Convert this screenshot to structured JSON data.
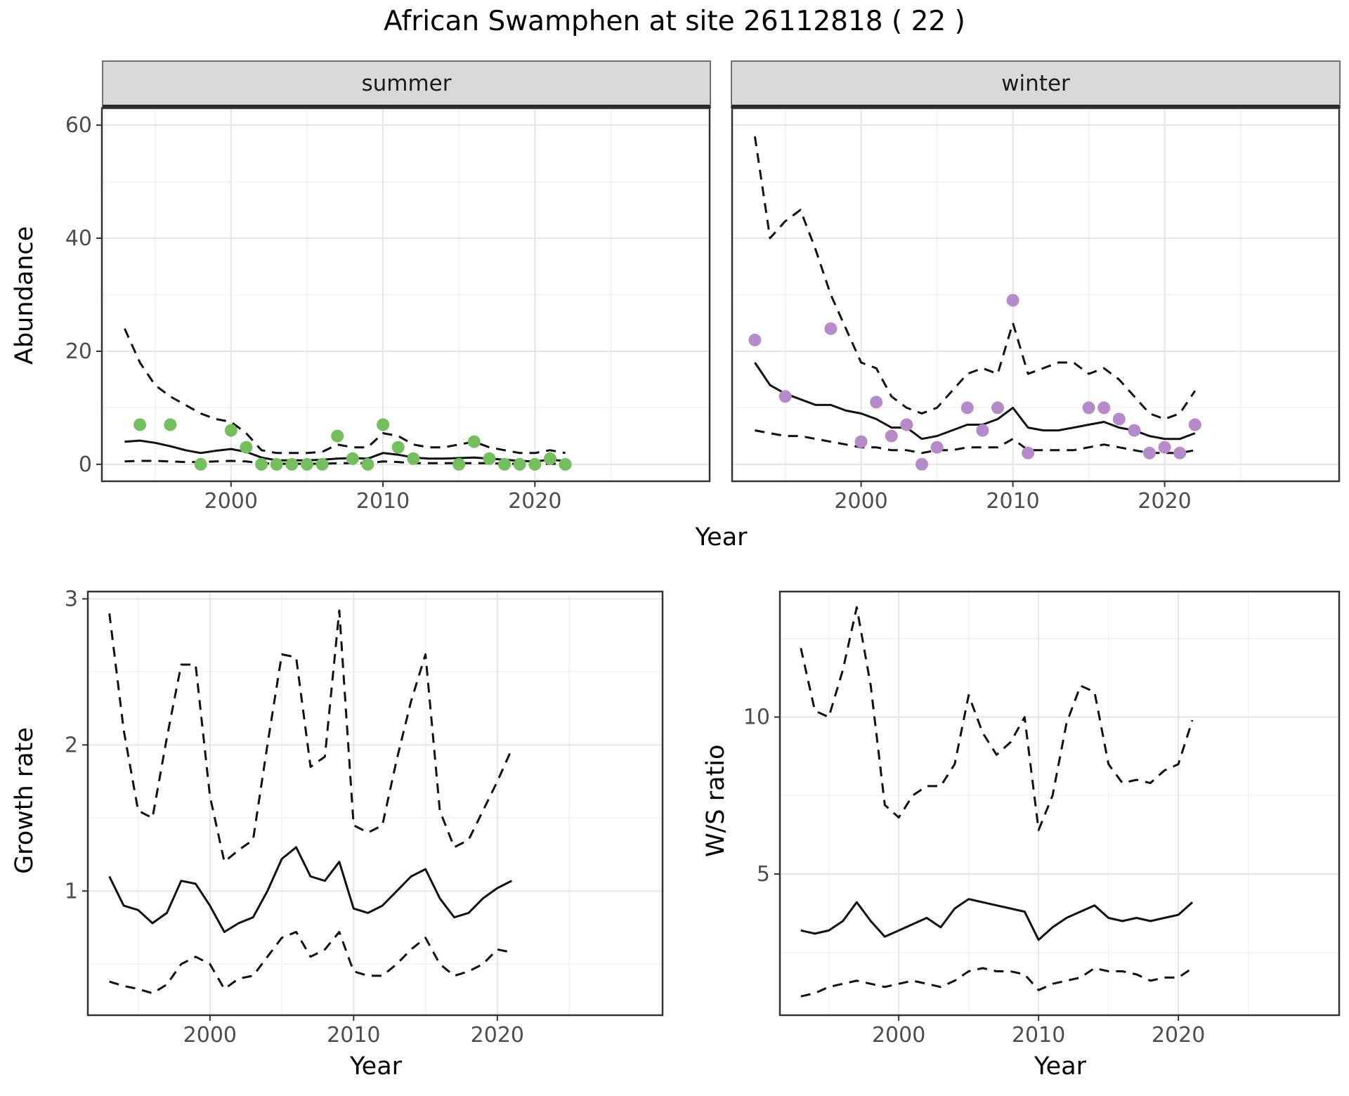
{
  "title": "African Swamphen at site 26112818 ( 22 )",
  "colors": {
    "summer": "#73bf5e",
    "winter": "#b68bc9",
    "line": "#111111"
  },
  "chart_data": [
    {
      "type": "line",
      "facet": "summer",
      "xlabel": "Year",
      "ylabel": "Abundance",
      "xlim": [
        1991.5,
        2031.5
      ],
      "ylim": [
        -3,
        63
      ],
      "xticks": [
        2000,
        2010,
        2020
      ],
      "yticks": [
        0,
        20,
        40,
        60
      ],
      "x": [
        1993,
        1994,
        1995,
        1996,
        1997,
        1998,
        1999,
        2000,
        2001,
        2002,
        2003,
        2004,
        2005,
        2006,
        2007,
        2008,
        2009,
        2010,
        2011,
        2012,
        2013,
        2014,
        2015,
        2016,
        2017,
        2018,
        2019,
        2020,
        2021,
        2022
      ],
      "series": [
        {
          "name": "fit",
          "style": "solid",
          "values": [
            4.0,
            4.2,
            3.8,
            3.2,
            2.5,
            2.0,
            2.4,
            2.7,
            2.2,
            1.2,
            0.7,
            0.7,
            0.7,
            0.8,
            1.0,
            1.1,
            1.0,
            2.0,
            1.7,
            1.2,
            1.0,
            1.0,
            1.1,
            1.2,
            1.0,
            0.8,
            0.6,
            0.5,
            0.8,
            0.6
          ]
        },
        {
          "name": "upper_ci",
          "style": "dashed",
          "values": [
            24,
            18,
            14,
            12,
            10.5,
            9,
            8,
            7.5,
            5.5,
            2.5,
            2,
            2,
            2,
            2.2,
            3.5,
            3,
            3,
            5.5,
            5,
            3.5,
            3,
            3,
            3.5,
            4,
            3,
            2.5,
            2,
            2,
            2.5,
            2
          ]
        },
        {
          "name": "lower_ci",
          "style": "dashed",
          "values": [
            0.5,
            0.6,
            0.6,
            0.5,
            0.4,
            0.4,
            0.5,
            0.6,
            0.5,
            0.2,
            0.1,
            0.1,
            0.1,
            0.1,
            0.2,
            0.2,
            0.2,
            0.5,
            0.4,
            0.2,
            0.2,
            0.2,
            0.2,
            0.2,
            0.2,
            0.1,
            0.1,
            0.1,
            0.1,
            0.1
          ]
        }
      ],
      "points": {
        "name": "observed-counts",
        "color_key": "summer",
        "x": [
          1994,
          1996,
          1998,
          2000,
          2001,
          2002,
          2003,
          2004,
          2005,
          2006,
          2007,
          2008,
          2009,
          2010,
          2011,
          2012,
          2015,
          2016,
          2017,
          2018,
          2019,
          2020,
          2021,
          2022
        ],
        "y": [
          7,
          7,
          0,
          6,
          3,
          0,
          0,
          0,
          0,
          0,
          5,
          1,
          0,
          7,
          3,
          1,
          0,
          4,
          1,
          0,
          0,
          0,
          1,
          0
        ]
      }
    },
    {
      "type": "line",
      "facet": "winter",
      "xlabel": "Year",
      "ylabel": "Abundance",
      "xlim": [
        1991.5,
        2031.5
      ],
      "ylim": [
        -3,
        63
      ],
      "xticks": [
        2000,
        2010,
        2020
      ],
      "yticks": [
        0,
        20,
        40,
        60
      ],
      "x": [
        1993,
        1994,
        1995,
        1996,
        1997,
        1998,
        1999,
        2000,
        2001,
        2002,
        2003,
        2004,
        2005,
        2006,
        2007,
        2008,
        2009,
        2010,
        2011,
        2012,
        2013,
        2014,
        2015,
        2016,
        2017,
        2018,
        2019,
        2020,
        2021,
        2022
      ],
      "series": [
        {
          "name": "fit",
          "style": "solid",
          "values": [
            18,
            14,
            12.5,
            11.5,
            10.5,
            10.5,
            9.5,
            9,
            8,
            6.5,
            6.5,
            4.5,
            5,
            6,
            7,
            7,
            8,
            10,
            6.5,
            6,
            6,
            6.5,
            7,
            7.5,
            6.5,
            6,
            5,
            4.5,
            4.5,
            5.5
          ]
        },
        {
          "name": "upper_ci",
          "style": "dashed",
          "values": [
            58,
            40,
            43,
            45,
            38,
            30,
            24,
            18,
            17,
            12,
            10,
            9,
            10,
            13,
            16,
            17,
            16,
            25,
            16,
            17,
            18,
            18,
            16,
            17,
            15,
            12,
            9,
            8,
            9,
            13
          ]
        },
        {
          "name": "lower_ci",
          "style": "dashed",
          "values": [
            6,
            5.5,
            5,
            5,
            4.5,
            4,
            3.5,
            3,
            3,
            2.5,
            2.5,
            2,
            2.5,
            2.5,
            3,
            3,
            3,
            4.5,
            2.5,
            2.5,
            2.5,
            2.5,
            3,
            3.5,
            3,
            2.5,
            2,
            2,
            2,
            2.5
          ]
        }
      ],
      "points": {
        "name": "observed-counts",
        "color_key": "winter",
        "x": [
          1993,
          1995,
          1998,
          2000,
          2001,
          2002,
          2003,
          2004,
          2005,
          2007,
          2008,
          2009,
          2010,
          2011,
          2015,
          2016,
          2017,
          2018,
          2019,
          2020,
          2021,
          2022
        ],
        "y": [
          22,
          12,
          24,
          4,
          11,
          5,
          7,
          0,
          3,
          10,
          6,
          10,
          29,
          2,
          10,
          10,
          8,
          6,
          2,
          3,
          2,
          7
        ]
      }
    },
    {
      "type": "line",
      "xlabel": "Year",
      "ylabel": "Growth rate",
      "xlim": [
        1991.5,
        2031.5
      ],
      "ylim": [
        0.15,
        3.05
      ],
      "xticks": [
        2000,
        2010,
        2020
      ],
      "yticks": [
        1,
        2,
        3
      ],
      "x": [
        1993,
        1994,
        1995,
        1996,
        1997,
        1998,
        1999,
        2000,
        2001,
        2002,
        2003,
        2004,
        2005,
        2006,
        2007,
        2008,
        2009,
        2010,
        2011,
        2012,
        2013,
        2014,
        2015,
        2016,
        2017,
        2018,
        2019,
        2020,
        2021
      ],
      "series": [
        {
          "name": "fit",
          "style": "solid",
          "values": [
            1.1,
            0.9,
            0.87,
            0.78,
            0.85,
            1.07,
            1.05,
            0.9,
            0.72,
            0.78,
            0.82,
            1.0,
            1.22,
            1.3,
            1.1,
            1.07,
            1.2,
            0.88,
            0.85,
            0.9,
            1.0,
            1.1,
            1.15,
            0.95,
            0.82,
            0.85,
            0.95,
            1.02,
            1.07
          ]
        },
        {
          "name": "upper_ci",
          "style": "dashed",
          "values": [
            2.9,
            2.1,
            1.55,
            1.5,
            2.05,
            2.55,
            2.55,
            1.65,
            1.2,
            1.28,
            1.35,
            2.0,
            2.62,
            2.6,
            1.85,
            1.92,
            2.92,
            1.45,
            1.4,
            1.45,
            1.9,
            2.3,
            2.62,
            1.55,
            1.3,
            1.35,
            1.55,
            1.75,
            1.97
          ]
        },
        {
          "name": "lower_ci",
          "style": "dashed",
          "values": [
            0.38,
            0.35,
            0.33,
            0.3,
            0.36,
            0.5,
            0.55,
            0.5,
            0.33,
            0.4,
            0.42,
            0.55,
            0.68,
            0.72,
            0.55,
            0.6,
            0.72,
            0.45,
            0.42,
            0.42,
            0.5,
            0.6,
            0.68,
            0.5,
            0.42,
            0.45,
            0.5,
            0.6,
            0.58
          ]
        }
      ]
    },
    {
      "type": "line",
      "xlabel": "Year",
      "ylabel": "W/S ratio",
      "xlim": [
        1991.5,
        2031.5
      ],
      "ylim": [
        0.5,
        14
      ],
      "xticks": [
        2000,
        2010,
        2020
      ],
      "yticks": [
        5,
        10
      ],
      "x": [
        1993,
        1994,
        1995,
        1996,
        1997,
        1998,
        1999,
        2000,
        2001,
        2002,
        2003,
        2004,
        2005,
        2006,
        2007,
        2008,
        2009,
        2010,
        2011,
        2012,
        2013,
        2014,
        2015,
        2016,
        2017,
        2018,
        2019,
        2020,
        2021
      ],
      "series": [
        {
          "name": "fit",
          "style": "solid",
          "values": [
            3.2,
            3.1,
            3.2,
            3.5,
            4.1,
            3.5,
            3.0,
            3.2,
            3.4,
            3.6,
            3.3,
            3.9,
            4.2,
            4.1,
            4.0,
            3.9,
            3.8,
            2.9,
            3.3,
            3.6,
            3.8,
            4.0,
            3.6,
            3.5,
            3.6,
            3.5,
            3.6,
            3.7,
            4.1
          ]
        },
        {
          "name": "upper_ci",
          "style": "dashed",
          "values": [
            12.2,
            10.2,
            10.0,
            11.5,
            13.5,
            11.0,
            7.2,
            6.8,
            7.5,
            7.8,
            7.8,
            8.5,
            10.7,
            9.5,
            8.8,
            9.2,
            10.0,
            6.4,
            7.5,
            9.8,
            11.0,
            10.8,
            8.5,
            7.9,
            8.0,
            7.9,
            8.3,
            8.5,
            9.9
          ]
        },
        {
          "name": "lower_ci",
          "style": "dashed",
          "values": [
            1.1,
            1.2,
            1.4,
            1.5,
            1.6,
            1.5,
            1.4,
            1.5,
            1.6,
            1.5,
            1.4,
            1.6,
            1.9,
            2.0,
            1.9,
            1.9,
            1.8,
            1.3,
            1.5,
            1.6,
            1.7,
            2.0,
            1.9,
            1.9,
            1.8,
            1.6,
            1.7,
            1.7,
            2.0
          ]
        }
      ]
    }
  ]
}
